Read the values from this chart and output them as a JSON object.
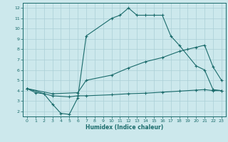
{
  "xlabel": "Humidex (Indice chaleur)",
  "bg_color": "#cce8ec",
  "grid_color": "#aacfd6",
  "line_color": "#1a6b6b",
  "xlim": [
    -0.5,
    23.5
  ],
  "ylim": [
    1.5,
    12.5
  ],
  "xticks": [
    0,
    1,
    2,
    3,
    4,
    5,
    6,
    7,
    8,
    9,
    10,
    11,
    12,
    13,
    14,
    15,
    16,
    17,
    18,
    19,
    20,
    21,
    22,
    23
  ],
  "yticks": [
    2,
    3,
    4,
    5,
    6,
    7,
    8,
    9,
    10,
    11,
    12
  ],
  "curve1_x": [
    0,
    1,
    2,
    3,
    4,
    5,
    6,
    7,
    10,
    11,
    12,
    13,
    14,
    15,
    16,
    17,
    18,
    20,
    21,
    22,
    23
  ],
  "curve1_y": [
    4.2,
    3.8,
    3.7,
    2.7,
    1.8,
    1.7,
    3.3,
    9.3,
    11.0,
    11.3,
    12.0,
    11.3,
    11.3,
    11.3,
    11.3,
    9.3,
    8.4,
    6.4,
    6.0,
    4.1,
    4.0
  ],
  "curve2_x": [
    0,
    3,
    6,
    7,
    10,
    12,
    14,
    16,
    18,
    19,
    20,
    21,
    22,
    23
  ],
  "curve2_y": [
    4.2,
    3.7,
    3.8,
    5.0,
    5.5,
    6.2,
    6.8,
    7.2,
    7.8,
    8.0,
    8.2,
    8.4,
    6.3,
    5.0
  ],
  "curve3_x": [
    0,
    2,
    3,
    5,
    6,
    7,
    10,
    12,
    14,
    16,
    18,
    20,
    21,
    22,
    23
  ],
  "curve3_y": [
    4.2,
    3.7,
    3.5,
    3.4,
    3.5,
    3.5,
    3.6,
    3.7,
    3.75,
    3.85,
    3.95,
    4.05,
    4.1,
    4.0,
    4.0
  ]
}
